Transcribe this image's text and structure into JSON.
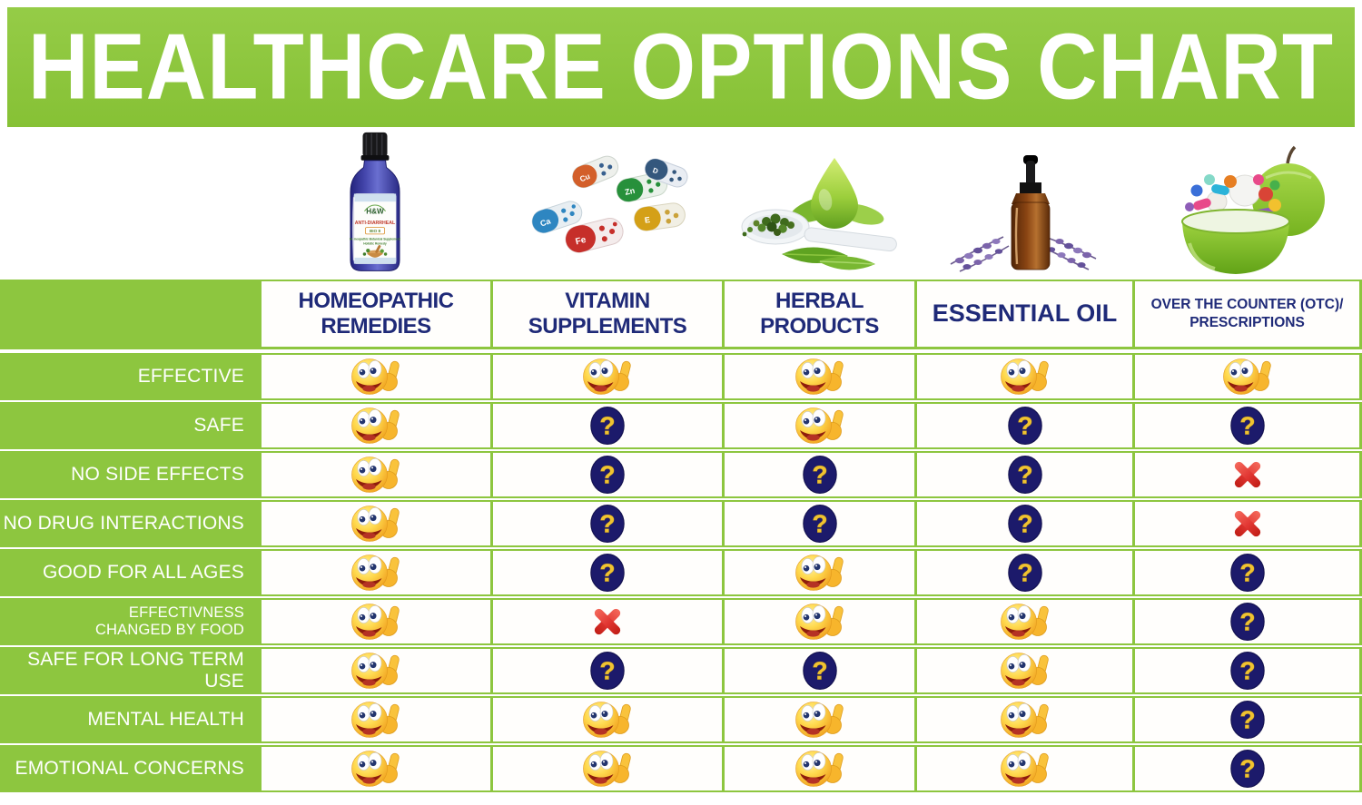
{
  "title": "HEALTHCARE OPTIONS CHART",
  "chart_data": {
    "type": "table",
    "title": "HEALTHCARE OPTIONS CHART",
    "columns": [
      "HOMEOPATHIC REMEDIES",
      "VITAMIN SUPPLEMENTS",
      "HERBAL PRODUCTS",
      "ESSENTIAL OIL",
      "OVER THE COUNTER (OTC)/ PRESCRIPTIONS"
    ],
    "row_labels": [
      "EFFECTIVE",
      "SAFE",
      "NO SIDE EFFECTS",
      "NO DRUG INTERACTIONS",
      "GOOD FOR ALL AGES",
      "EFFECTIVNESS CHANGED BY FOOD",
      "SAFE FOR LONG TERM USE",
      "MENTAL HEALTH",
      "EMOTIONAL CONCERNS"
    ],
    "values": [
      [
        "smiley",
        "smiley",
        "smiley",
        "smiley",
        "smiley"
      ],
      [
        "smiley",
        "question",
        "smiley",
        "question",
        "question"
      ],
      [
        "smiley",
        "question",
        "question",
        "question",
        "cross"
      ],
      [
        "smiley",
        "question",
        "question",
        "question",
        "cross"
      ],
      [
        "smiley",
        "question",
        "smiley",
        "question",
        "question"
      ],
      [
        "smiley",
        "cross",
        "smiley",
        "smiley",
        "question"
      ],
      [
        "smiley",
        "question",
        "question",
        "smiley",
        "question"
      ],
      [
        "smiley",
        "smiley",
        "smiley",
        "smiley",
        "question"
      ],
      [
        "smiley",
        "smiley",
        "smiley",
        "smiley",
        "question"
      ]
    ],
    "value_icons": {
      "smiley": "thumbs-up smiley face",
      "question": "question mark in navy circle",
      "cross": "red cross"
    }
  },
  "columns": [
    {
      "label": "HOMEOPATHIC\nREMEDIES",
      "image": "homeopathic-remedy-bottle"
    },
    {
      "label": "VITAMIN\nSUPPLEMENTS",
      "image": "vitamin-capsules"
    },
    {
      "label": "HERBAL\nPRODUCTS",
      "image": "herbal-spoon-and-leaves"
    },
    {
      "label": "ESSENTIAL OIL",
      "image": "essential-oil-dropper-bottle"
    },
    {
      "label": "OVER THE COUNTER (OTC)/\nPRESCRIPTIONS",
      "image": "apple-bowl-of-pills"
    }
  ],
  "rows": [
    {
      "label": "EFFECTIVE",
      "cells": [
        "smiley",
        "smiley",
        "smiley",
        "smiley",
        "smiley"
      ]
    },
    {
      "label": "SAFE",
      "cells": [
        "smiley",
        "question",
        "smiley",
        "question",
        "question"
      ]
    },
    {
      "label": "NO SIDE EFFECTS",
      "cells": [
        "smiley",
        "question",
        "question",
        "question",
        "cross"
      ]
    },
    {
      "label": "NO DRUG INTERACTIONS",
      "cells": [
        "smiley",
        "question",
        "question",
        "question",
        "cross"
      ]
    },
    {
      "label": "GOOD FOR ALL AGES",
      "cells": [
        "smiley",
        "question",
        "smiley",
        "question",
        "question"
      ]
    },
    {
      "label": "EFFECTIVNESS\nCHANGED BY FOOD",
      "cells": [
        "smiley",
        "cross",
        "smiley",
        "smiley",
        "question"
      ]
    },
    {
      "label": "SAFE FOR LONG TERM USE",
      "cells": [
        "smiley",
        "question",
        "question",
        "smiley",
        "question"
      ]
    },
    {
      "label": "MENTAL HEALTH",
      "cells": [
        "smiley",
        "smiley",
        "smiley",
        "smiley",
        "question"
      ]
    },
    {
      "label": "EMOTIONAL CONCERNS",
      "cells": [
        "smiley",
        "smiley",
        "smiley",
        "smiley",
        "question"
      ]
    }
  ],
  "products": {
    "bottle_label": {
      "brand": "H&W",
      "line1": "ANTI-DIARRHEAL",
      "line2": "BIO 8",
      "line3": "Homeopathic Botanical Supplement",
      "line4": "Holistic Remedy"
    },
    "capsule_letters": {
      "blue": "Ca",
      "orange": "Cu",
      "green": "Zn",
      "red": "Fe",
      "navy": "D",
      "yellow": "E"
    }
  },
  "colors": {
    "banner_green": "#8dc63f",
    "header_navy": "#1f2a78",
    "question_circle": "#1c1a6b",
    "question_mark_gold": "#f0c331",
    "cross_red": "#e13632"
  }
}
